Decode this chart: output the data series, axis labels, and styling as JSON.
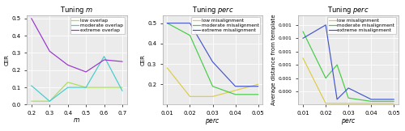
{
  "panel1": {
    "title": "Tuning $m$",
    "xlabel": "m",
    "ylabel": "CER",
    "x": [
      0.2,
      0.3,
      0.4,
      0.5,
      0.6,
      0.7
    ],
    "lines": {
      "low overlap": {
        "color": "#aadd55",
        "y": [
          0.02,
          0.02,
          0.13,
          0.1,
          0.1,
          0.1
        ]
      },
      "moderate overlap": {
        "color": "#44cccc",
        "y": [
          0.11,
          0.02,
          0.1,
          0.1,
          0.28,
          0.08
        ]
      },
      "extreme overlap": {
        "color": "#9933cc",
        "y": [
          0.5,
          0.31,
          0.23,
          0.19,
          0.26,
          0.25
        ]
      }
    },
    "ylim": [
      0.0,
      0.52
    ],
    "yticks": [
      0.0,
      0.1,
      0.2,
      0.3,
      0.4,
      0.5
    ],
    "xticks": [
      0.2,
      0.3,
      0.4,
      0.5,
      0.6,
      0.7
    ]
  },
  "panel2": {
    "title": "Tuning $perc$",
    "xlabel": "perc",
    "ylabel": "CER",
    "x": [
      0.01,
      0.02,
      0.03,
      0.04,
      0.05
    ],
    "lines": {
      "low misalignment": {
        "color": "#ddcc44",
        "y": [
          0.28,
          0.14,
          0.14,
          0.17,
          0.2
        ]
      },
      "moderate misalignment": {
        "color": "#44cc44",
        "y": [
          0.5,
          0.44,
          0.19,
          0.15,
          0.15
        ]
      },
      "extreme misalignment": {
        "color": "#4455cc",
        "y": [
          0.5,
          0.5,
          0.31,
          0.19,
          0.19
        ]
      }
    },
    "ylim": [
      0.1,
      0.54
    ],
    "yticks": [
      0.2,
      0.3,
      0.4,
      0.5
    ],
    "xticks": [
      0.01,
      0.02,
      0.03,
      0.04,
      0.05
    ]
  },
  "panel3": {
    "title": "Tuning $perc$",
    "xlabel": "perc",
    "ylabel": "Average distance from template",
    "x": [
      0.01,
      0.02,
      0.025,
      0.03,
      0.04,
      0.05
    ],
    "lines": {
      "low misalignment": {
        "color": "#ddcc44",
        "y": [
          0.0009,
          0.00022,
          0.00022,
          0.00022,
          0.00022,
          0.00022
        ]
      },
      "moderate misalignment": {
        "color": "#44cc44",
        "y": [
          0.0013,
          0.0006,
          0.0008,
          0.0003,
          0.00025,
          0.00025
        ]
      },
      "extreme misalignment": {
        "color": "#4455cc",
        "y": [
          0.0012,
          0.0014,
          0.00028,
          0.00045,
          0.00028,
          0.00028
        ]
      }
    },
    "ylim": [
      0.0002,
      0.00155
    ],
    "yticks": [
      0.0004,
      0.0006,
      0.0008,
      0.001,
      0.0012,
      0.0014
    ],
    "xticks": [
      0.01,
      0.02,
      0.03,
      0.04,
      0.05
    ]
  }
}
